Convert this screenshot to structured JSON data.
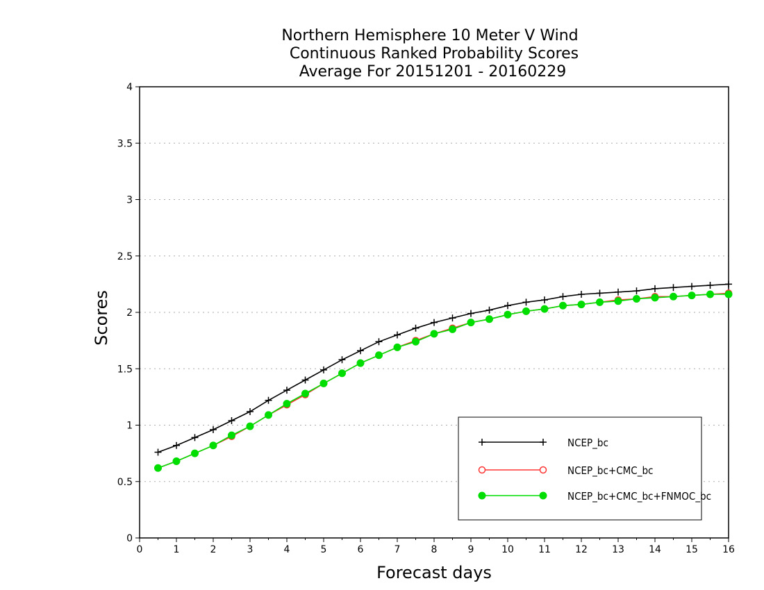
{
  "chart_data": {
    "type": "line",
    "title": [
      "Northern Hemisphere 10 Meter V Wind",
      "Continuous Ranked Probability Scores",
      "Average For 20151201 - 20160229"
    ],
    "xlabel": "Forecast days",
    "ylabel": "Scores",
    "xlim": [
      0,
      16
    ],
    "ylim": [
      0,
      4
    ],
    "xticks": [
      0,
      1,
      2,
      3,
      4,
      5,
      6,
      7,
      8,
      9,
      10,
      11,
      12,
      13,
      14,
      15,
      16
    ],
    "yticks": [
      0,
      0.5,
      1,
      1.5,
      2,
      2.5,
      3,
      3.5,
      4
    ],
    "ytick_labels": [
      "0",
      "0.5",
      "1",
      "1.5",
      "2",
      "2.5",
      "3",
      "3.5",
      "4"
    ],
    "grid": "horizontal dotted",
    "legend_position": "bottom-right",
    "x": [
      0.5,
      1,
      1.5,
      2,
      2.5,
      3,
      3.5,
      4,
      4.5,
      5,
      5.5,
      6,
      6.5,
      7,
      7.5,
      8,
      8.5,
      9,
      9.5,
      10,
      10.5,
      11,
      11.5,
      12,
      12.5,
      13,
      13.5,
      14,
      14.5,
      15,
      15.5,
      16
    ],
    "series": [
      {
        "name": "NCEP_bc",
        "color": "#000000",
        "marker": "plus",
        "values": [
          0.76,
          0.82,
          0.89,
          0.96,
          1.04,
          1.12,
          1.22,
          1.31,
          1.4,
          1.49,
          1.58,
          1.66,
          1.74,
          1.8,
          1.86,
          1.91,
          1.95,
          1.99,
          2.02,
          2.06,
          2.09,
          2.11,
          2.14,
          2.16,
          2.17,
          2.18,
          2.19,
          2.21,
          2.22,
          2.23,
          2.24,
          2.25
        ]
      },
      {
        "name": "NCEP_bc+CMC_bc",
        "color": "#ff3333",
        "marker": "open-circle",
        "values": [
          0.62,
          0.68,
          0.75,
          0.82,
          0.9,
          0.99,
          1.09,
          1.18,
          1.27,
          1.37,
          1.46,
          1.55,
          1.62,
          1.69,
          1.75,
          1.81,
          1.86,
          1.91,
          1.94,
          1.98,
          2.01,
          2.03,
          2.06,
          2.07,
          2.09,
          2.11,
          2.12,
          2.14,
          2.14,
          2.15,
          2.16,
          2.17
        ]
      },
      {
        "name": "NCEP_bc+CMC_bc+FNMOC_bc",
        "color": "#00dd00",
        "marker": "filled-circle",
        "values": [
          0.62,
          0.68,
          0.75,
          0.82,
          0.91,
          0.99,
          1.09,
          1.19,
          1.28,
          1.37,
          1.46,
          1.55,
          1.62,
          1.69,
          1.74,
          1.81,
          1.85,
          1.91,
          1.94,
          1.98,
          2.01,
          2.03,
          2.06,
          2.07,
          2.09,
          2.1,
          2.12,
          2.13,
          2.14,
          2.15,
          2.16,
          2.16
        ]
      }
    ]
  }
}
